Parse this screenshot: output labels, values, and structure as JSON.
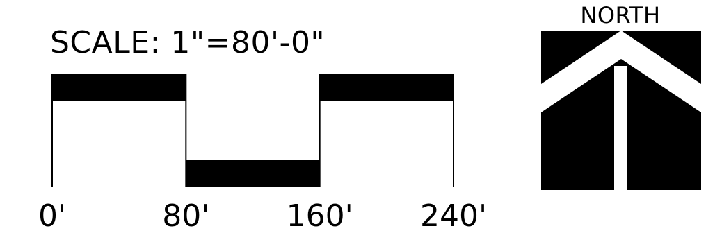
{
  "scale_bar": {
    "title": "SCALE:  1\"=80'-0\"",
    "ticks": [
      {
        "value": 0,
        "label": "0'"
      },
      {
        "value": 80,
        "label": "80'"
      },
      {
        "value": 160,
        "label": "160'"
      },
      {
        "value": 240,
        "label": "240'"
      }
    ],
    "segments": [
      {
        "from": 0,
        "to": 80,
        "level": "high"
      },
      {
        "from": 80,
        "to": 160,
        "level": "low"
      },
      {
        "from": 160,
        "to": 240,
        "level": "high"
      }
    ]
  },
  "north_arrow": {
    "label": "NORTH",
    "icon": "north-arrow-icon"
  },
  "colors": {
    "ink": "#000000",
    "paper": "#ffffff"
  }
}
